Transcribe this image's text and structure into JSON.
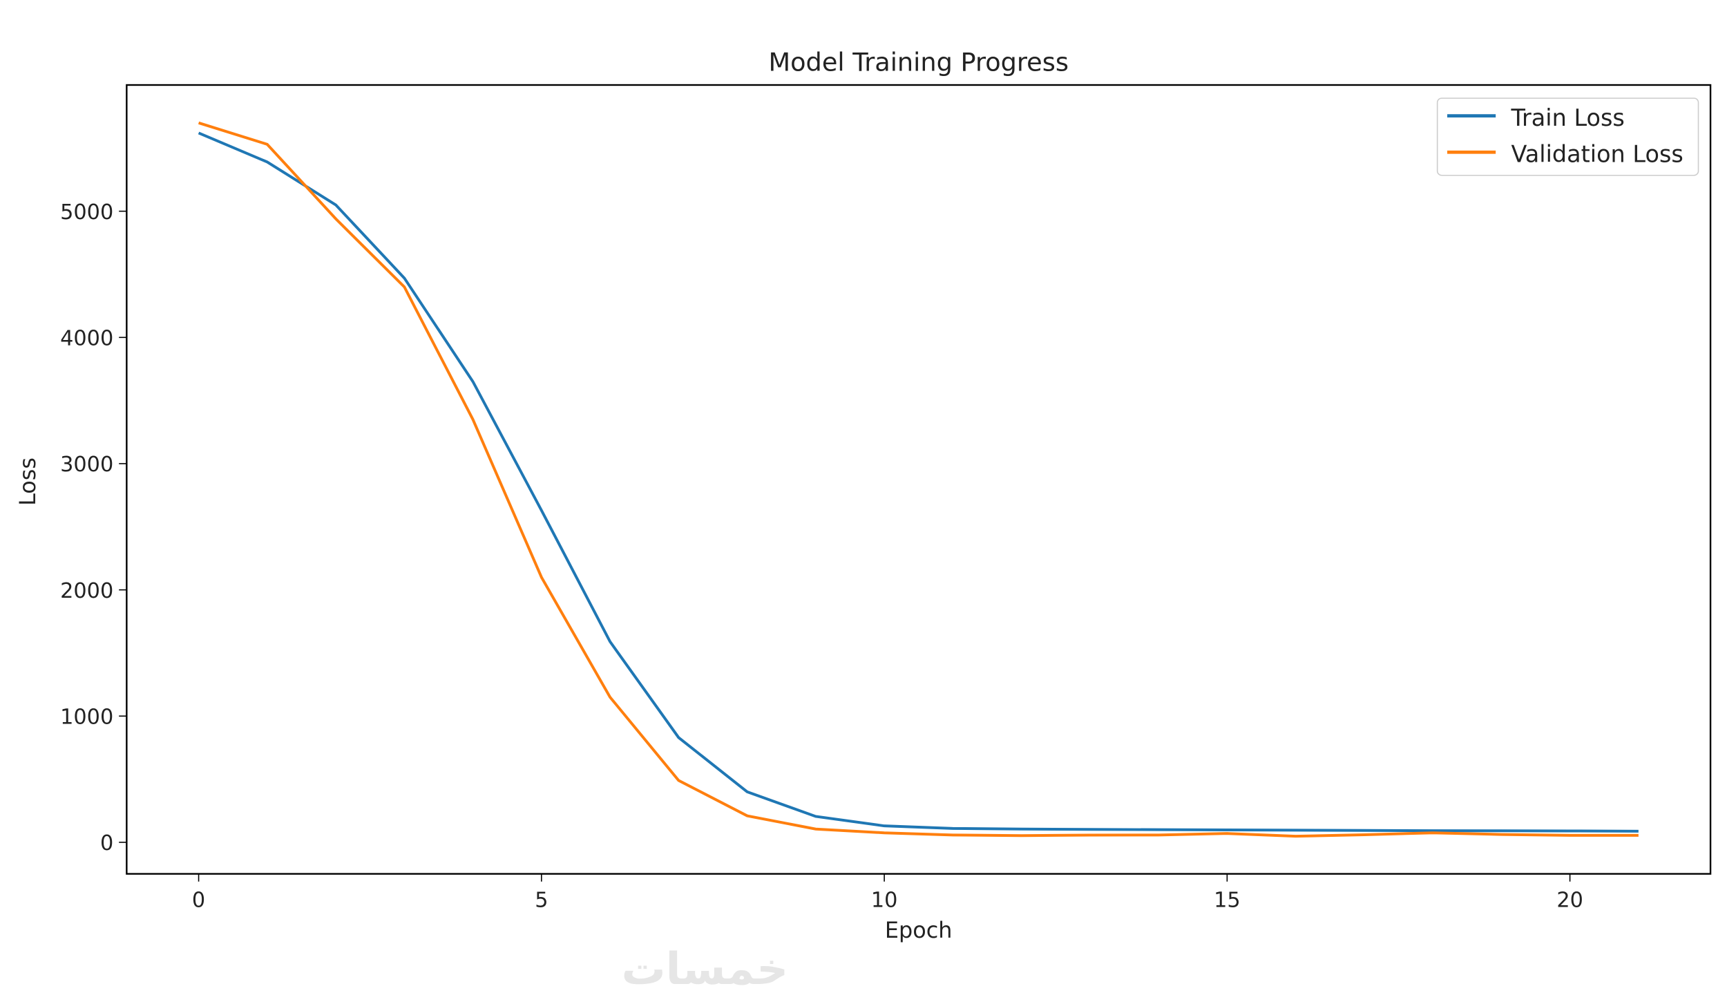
{
  "chart_data": {
    "type": "line",
    "title": "Model Training Progress",
    "xlabel": "Epoch",
    "ylabel": "Loss",
    "xlim": [
      -1.05,
      22.05
    ],
    "ylim": [
      -250,
      6000
    ],
    "xticks": [
      0,
      5,
      10,
      15,
      20
    ],
    "yticks": [
      0,
      1000,
      2000,
      3000,
      4000,
      5000
    ],
    "x": [
      0,
      1,
      2,
      3,
      4,
      5,
      6,
      7,
      8,
      9,
      10,
      11,
      12,
      13,
      14,
      15,
      16,
      17,
      18,
      19,
      20,
      21
    ],
    "series": [
      {
        "name": "Train Loss",
        "color": "#1f77b4",
        "values": [
          5620,
          5390,
          5050,
          4470,
          3650,
          2630,
          1590,
          830,
          400,
          205,
          130,
          110,
          105,
          102,
          100,
          98,
          96,
          94,
          92,
          91,
          90,
          88
        ]
      },
      {
        "name": "Validation Loss",
        "color": "#ff7f0e",
        "values": [
          5700,
          5530,
          4940,
          4400,
          3350,
          2100,
          1150,
          490,
          210,
          105,
          75,
          58,
          53,
          57,
          58,
          70,
          48,
          60,
          75,
          62,
          55,
          55
        ]
      }
    ],
    "legend": {
      "position": "top-right",
      "entries": [
        "Train Loss",
        "Validation Loss"
      ]
    },
    "grid": false
  },
  "watermark": "خمسات"
}
